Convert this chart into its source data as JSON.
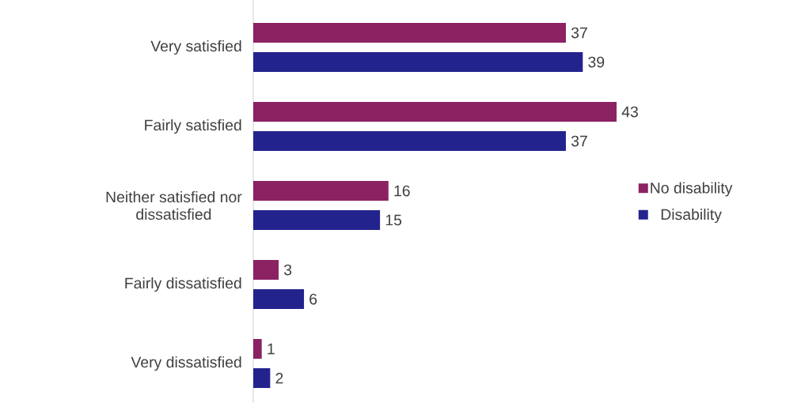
{
  "chart_data": {
    "type": "bar",
    "orientation": "horizontal",
    "categories": [
      "Very satisfied",
      "Fairly satisfied",
      "Neither satisfied nor dissatisfied",
      "Fairly dissatisfied",
      "Very dissatisfied"
    ],
    "series": [
      {
        "name": "No disability",
        "color": "#8b2262",
        "values": [
          37,
          43,
          16,
          3,
          1
        ]
      },
      {
        "name": "Disability",
        "color": "#23238e",
        "values": [
          39,
          37,
          15,
          6,
          2
        ]
      }
    ],
    "data_labels": true,
    "legend": "right"
  }
}
